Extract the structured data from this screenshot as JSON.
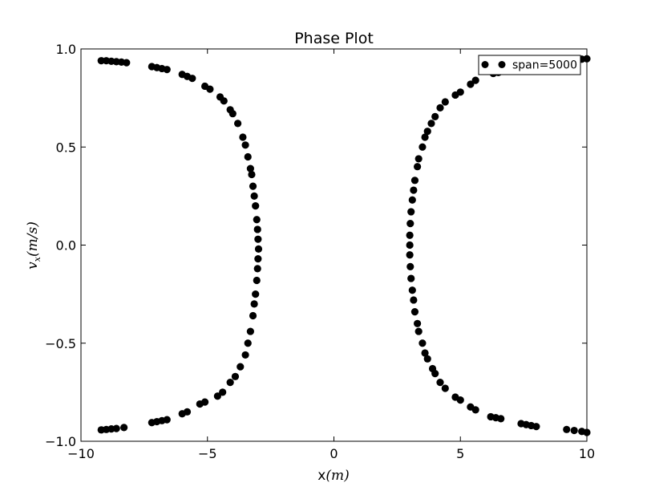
{
  "chart_data": {
    "type": "scatter",
    "title": "Phase Plot",
    "xlabel_main": "x",
    "xlabel_unit": "(m)",
    "ylabel_main": "v",
    "ylabel_sub": "x",
    "ylabel_unit": "(m/s)",
    "xlim": [
      -10,
      10
    ],
    "ylim": [
      -1.0,
      1.0
    ],
    "xticks": [
      -10,
      -5,
      0,
      5,
      10
    ],
    "xtick_labels": [
      "−10",
      "−5",
      "0",
      "5",
      "10"
    ],
    "yticks": [
      1.0,
      0.5,
      0.0,
      -0.5,
      -1.0
    ],
    "ytick_labels": [
      "1.0",
      "0.5",
      "0.0",
      "−0.5",
      "−1.0"
    ],
    "grid": false,
    "legend_position": "top-right",
    "marker_color": "#000000",
    "series": [
      {
        "name": "span=5000",
        "points": [
          [
            -9.2,
            0.94
          ],
          [
            -9.0,
            0.94
          ],
          [
            -8.8,
            0.937
          ],
          [
            -8.6,
            0.935
          ],
          [
            -8.4,
            0.933
          ],
          [
            -8.2,
            0.93
          ],
          [
            -7.2,
            0.91
          ],
          [
            -7.0,
            0.905
          ],
          [
            -6.8,
            0.9
          ],
          [
            -6.6,
            0.895
          ],
          [
            -6.0,
            0.87
          ],
          [
            -5.8,
            0.86
          ],
          [
            -5.6,
            0.85
          ],
          [
            -5.1,
            0.81
          ],
          [
            -4.9,
            0.795
          ],
          [
            -4.5,
            0.755
          ],
          [
            -4.35,
            0.735
          ],
          [
            -4.1,
            0.69
          ],
          [
            -4.0,
            0.67
          ],
          [
            -3.8,
            0.62
          ],
          [
            -3.6,
            0.55
          ],
          [
            -3.5,
            0.51
          ],
          [
            -3.4,
            0.45
          ],
          [
            -3.3,
            0.39
          ],
          [
            -3.25,
            0.36
          ],
          [
            -3.2,
            0.3
          ],
          [
            -3.15,
            0.25
          ],
          [
            -3.1,
            0.2
          ],
          [
            -3.05,
            0.13
          ],
          [
            -3.02,
            0.08
          ],
          [
            -3.0,
            0.03
          ],
          [
            -2.98,
            -0.02
          ],
          [
            -3.0,
            -0.07
          ],
          [
            -3.02,
            -0.12
          ],
          [
            -3.05,
            -0.18
          ],
          [
            -3.1,
            -0.25
          ],
          [
            -3.15,
            -0.3
          ],
          [
            -3.2,
            -0.36
          ],
          [
            -3.3,
            -0.44
          ],
          [
            -3.4,
            -0.5
          ],
          [
            -3.5,
            -0.56
          ],
          [
            -3.7,
            -0.62
          ],
          [
            -3.9,
            -0.67
          ],
          [
            -4.1,
            -0.7
          ],
          [
            -4.4,
            -0.75
          ],
          [
            -4.6,
            -0.77
          ],
          [
            -5.1,
            -0.8
          ],
          [
            -5.3,
            -0.81
          ],
          [
            -5.8,
            -0.85
          ],
          [
            -6.0,
            -0.86
          ],
          [
            -6.6,
            -0.89
          ],
          [
            -6.8,
            -0.895
          ],
          [
            -7.0,
            -0.9
          ],
          [
            -7.2,
            -0.905
          ],
          [
            -8.3,
            -0.93
          ],
          [
            -8.6,
            -0.935
          ],
          [
            -8.8,
            -0.937
          ],
          [
            -9.0,
            -0.94
          ],
          [
            -9.2,
            -0.942
          ],
          [
            9.2,
            -0.94
          ],
          [
            9.5,
            -0.945
          ],
          [
            9.8,
            -0.95
          ],
          [
            10.0,
            -0.955
          ],
          [
            8.0,
            -0.925
          ],
          [
            7.8,
            -0.92
          ],
          [
            7.6,
            -0.915
          ],
          [
            7.4,
            -0.91
          ],
          [
            6.6,
            -0.885
          ],
          [
            6.4,
            -0.88
          ],
          [
            6.2,
            -0.875
          ],
          [
            5.6,
            -0.84
          ],
          [
            5.4,
            -0.825
          ],
          [
            5.0,
            -0.79
          ],
          [
            4.8,
            -0.775
          ],
          [
            4.4,
            -0.73
          ],
          [
            4.2,
            -0.7
          ],
          [
            4.0,
            -0.655
          ],
          [
            3.9,
            -0.63
          ],
          [
            3.7,
            -0.58
          ],
          [
            3.6,
            -0.55
          ],
          [
            3.5,
            -0.5
          ],
          [
            3.35,
            -0.44
          ],
          [
            3.3,
            -0.4
          ],
          [
            3.2,
            -0.34
          ],
          [
            3.15,
            -0.28
          ],
          [
            3.1,
            -0.23
          ],
          [
            3.05,
            -0.17
          ],
          [
            3.02,
            -0.11
          ],
          [
            3.0,
            -0.05
          ],
          [
            3.0,
            0.0
          ],
          [
            3.0,
            0.05
          ],
          [
            3.02,
            0.11
          ],
          [
            3.05,
            0.17
          ],
          [
            3.1,
            0.23
          ],
          [
            3.15,
            0.28
          ],
          [
            3.2,
            0.33
          ],
          [
            3.3,
            0.4
          ],
          [
            3.35,
            0.44
          ],
          [
            3.5,
            0.5
          ],
          [
            3.6,
            0.55
          ],
          [
            3.7,
            0.58
          ],
          [
            3.85,
            0.62
          ],
          [
            4.0,
            0.655
          ],
          [
            4.2,
            0.7
          ],
          [
            4.4,
            0.73
          ],
          [
            4.8,
            0.765
          ],
          [
            5.0,
            0.78
          ],
          [
            5.4,
            0.82
          ],
          [
            5.6,
            0.84
          ],
          [
            6.3,
            0.875
          ],
          [
            6.5,
            0.88
          ],
          [
            7.2,
            0.905
          ],
          [
            7.5,
            0.91
          ],
          [
            7.8,
            0.92
          ],
          [
            9.8,
            0.948
          ],
          [
            10.0,
            0.95
          ]
        ]
      }
    ]
  }
}
